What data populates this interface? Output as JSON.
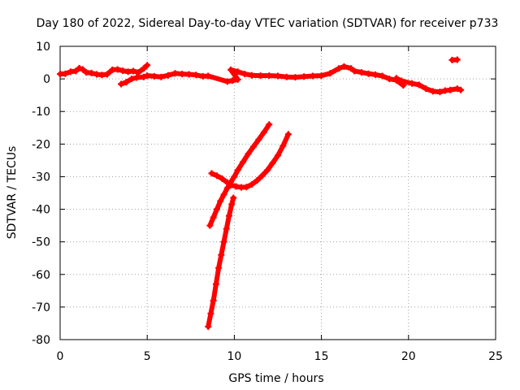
{
  "chart_data": {
    "type": "scatter",
    "title": "Day 180 of 2022, Sidereal Day-to-day VTEC variation (SDTVAR) for receiver p733",
    "xlabel": "GPS time / hours",
    "ylabel": "SDTVAR / TECUs",
    "xlim": [
      0,
      25
    ],
    "ylim": [
      -80,
      10
    ],
    "xticks": [
      0,
      5,
      10,
      15,
      20,
      25
    ],
    "yticks": [
      10,
      0,
      -10,
      -20,
      -30,
      -40,
      -50,
      -60,
      -70,
      -80
    ],
    "grid": true,
    "marker": "plus",
    "color": "#ff0000",
    "series": [
      {
        "points": [
          [
            0.0,
            1.5
          ],
          [
            0.3,
            1.6
          ],
          [
            0.6,
            2.2
          ],
          [
            0.9,
            2.4
          ],
          [
            1.1,
            3.3
          ],
          [
            1.3,
            2.9
          ],
          [
            1.5,
            2.0
          ],
          [
            1.8,
            1.8
          ],
          [
            2.1,
            1.4
          ],
          [
            2.4,
            1.2
          ],
          [
            2.7,
            1.4
          ],
          [
            3.0,
            2.8
          ],
          [
            3.3,
            2.9
          ],
          [
            3.6,
            2.5
          ],
          [
            3.9,
            2.2
          ],
          [
            4.2,
            2.4
          ],
          [
            4.5,
            2.0
          ],
          [
            4.8,
            3.2
          ],
          [
            5.0,
            4.2
          ],
          [
            3.5,
            -1.6
          ],
          [
            3.8,
            -1.0
          ],
          [
            4.1,
            0.0
          ],
          [
            4.4,
            0.4
          ],
          [
            4.8,
            0.6
          ],
          [
            5.0,
            1.0
          ],
          [
            5.4,
            0.8
          ],
          [
            5.8,
            0.6
          ],
          [
            6.2,
            1.1
          ],
          [
            6.6,
            1.7
          ],
          [
            7.0,
            1.5
          ],
          [
            7.4,
            1.4
          ],
          [
            7.8,
            1.2
          ],
          [
            8.2,
            0.8
          ],
          [
            8.5,
            0.9
          ],
          [
            9.6,
            -0.8
          ],
          [
            9.9,
            -0.5
          ],
          [
            10.2,
            -0.2
          ],
          [
            9.8,
            2.8
          ],
          [
            10.2,
            2.2
          ],
          [
            10.6,
            1.5
          ],
          [
            11.0,
            1.1
          ],
          [
            11.5,
            1.0
          ],
          [
            12.0,
            1.0
          ],
          [
            12.5,
            0.9
          ],
          [
            13.0,
            0.6
          ],
          [
            13.5,
            0.5
          ],
          [
            14.0,
            0.7
          ],
          [
            14.5,
            0.9
          ],
          [
            15.0,
            1.0
          ],
          [
            15.5,
            1.7
          ],
          [
            16.0,
            3.2
          ],
          [
            16.3,
            3.8
          ],
          [
            16.7,
            3.2
          ],
          [
            16.9,
            2.4
          ],
          [
            17.3,
            2.0
          ],
          [
            17.7,
            1.6
          ],
          [
            18.1,
            1.3
          ],
          [
            18.5,
            0.9
          ],
          [
            18.9,
            0.0
          ],
          [
            19.3,
            -0.4
          ],
          [
            19.7,
            -2.0
          ],
          [
            19.3,
            0.2
          ],
          [
            19.6,
            -0.6
          ],
          [
            20.2,
            -1.4
          ],
          [
            20.6,
            -1.8
          ],
          [
            21.0,
            -3.0
          ],
          [
            21.4,
            -3.8
          ],
          [
            21.8,
            -4.0
          ],
          [
            22.1,
            -3.6
          ],
          [
            22.4,
            -3.4
          ],
          [
            22.8,
            -3.0
          ],
          [
            23.0,
            -3.4
          ],
          [
            22.5,
            5.8
          ],
          [
            22.8,
            5.9
          ],
          [
            8.7,
            -29.0
          ],
          [
            9.0,
            -29.7
          ],
          [
            9.3,
            -30.6
          ],
          [
            9.6,
            -31.8
          ],
          [
            9.8,
            -32.6
          ],
          [
            10.1,
            -33.0
          ],
          [
            10.4,
            -33.3
          ],
          [
            10.7,
            -33.2
          ],
          [
            11.0,
            -32.4
          ],
          [
            11.3,
            -31.2
          ],
          [
            11.6,
            -29.7
          ],
          [
            11.9,
            -28.0
          ],
          [
            12.2,
            -25.8
          ],
          [
            12.5,
            -23.5
          ],
          [
            12.8,
            -20.5
          ],
          [
            13.1,
            -17.0
          ],
          [
            8.6,
            -45.0
          ],
          [
            8.8,
            -42.5
          ],
          [
            9.0,
            -40.0
          ],
          [
            9.2,
            -37.5
          ],
          [
            9.4,
            -35.5
          ],
          [
            9.6,
            -33.5
          ],
          [
            9.8,
            -31.6
          ],
          [
            10.0,
            -30.0
          ],
          [
            10.2,
            -28.0
          ],
          [
            10.5,
            -25.5
          ],
          [
            10.8,
            -23.0
          ],
          [
            11.1,
            -20.8
          ],
          [
            11.4,
            -18.6
          ],
          [
            11.7,
            -16.4
          ],
          [
            12.0,
            -14.0
          ],
          [
            8.5,
            -76.0
          ],
          [
            8.65,
            -72.0
          ],
          [
            8.8,
            -68.0
          ],
          [
            8.95,
            -63.0
          ],
          [
            9.1,
            -58.0
          ],
          [
            9.25,
            -54.0
          ],
          [
            9.4,
            -50.0
          ],
          [
            9.55,
            -46.0
          ],
          [
            9.7,
            -42.0
          ],
          [
            9.85,
            -38.5
          ],
          [
            9.95,
            -36.5
          ]
        ]
      }
    ]
  }
}
